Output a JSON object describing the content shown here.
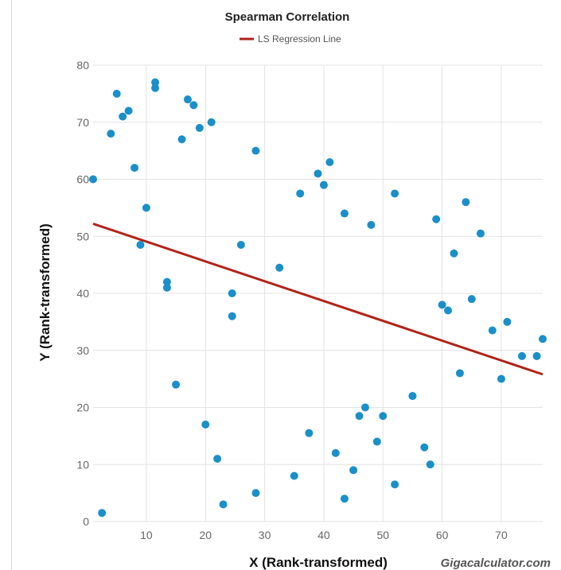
{
  "chart_data": {
    "type": "scatter",
    "title": "Spearman Correlation",
    "xlabel": "X (Rank-transformed)",
    "ylabel": "Y (Rank-transformed)",
    "xlim": [
      1,
      77
    ],
    "ylim": [
      0,
      80
    ],
    "x_ticks": [
      10,
      20,
      30,
      40,
      50,
      60,
      70
    ],
    "y_ticks": [
      0,
      10,
      20,
      30,
      40,
      50,
      60,
      70,
      80
    ],
    "grid": true,
    "legend": {
      "position": "top-center",
      "entries": [
        "LS Regression Line"
      ]
    },
    "watermark": "Gigacalculator.com",
    "colors": {
      "points": "#1a8fc9",
      "regression_line": "#b22318",
      "grid": "#e3e3e3",
      "axis_text": "#666666"
    },
    "series": [
      {
        "kind": "points",
        "points": [
          [
            1,
            60
          ],
          [
            2.5,
            1.5
          ],
          [
            4,
            68
          ],
          [
            5,
            75
          ],
          [
            6,
            71
          ],
          [
            7,
            72
          ],
          [
            8,
            62
          ],
          [
            9,
            48.5
          ],
          [
            10,
            55
          ],
          [
            11.5,
            77
          ],
          [
            11.5,
            76
          ],
          [
            13.5,
            42
          ],
          [
            13.5,
            41
          ],
          [
            15,
            24
          ],
          [
            16,
            67
          ],
          [
            17,
            74
          ],
          [
            18,
            73
          ],
          [
            19,
            69
          ],
          [
            20,
            17
          ],
          [
            21,
            70
          ],
          [
            22,
            11
          ],
          [
            23,
            3
          ],
          [
            24.5,
            40
          ],
          [
            24.5,
            36
          ],
          [
            26,
            48.5
          ],
          [
            28.5,
            65
          ],
          [
            28.5,
            5
          ],
          [
            32.5,
            44.5
          ],
          [
            35,
            8
          ],
          [
            36,
            57.5
          ],
          [
            37.5,
            15.5
          ],
          [
            39,
            61
          ],
          [
            40,
            59
          ],
          [
            41,
            63
          ],
          [
            42,
            12
          ],
          [
            43.5,
            54
          ],
          [
            43.5,
            4
          ],
          [
            45,
            9
          ],
          [
            46,
            18.5
          ],
          [
            47,
            20
          ],
          [
            48,
            52
          ],
          [
            49,
            14
          ],
          [
            50,
            18.5
          ],
          [
            52,
            57.5
          ],
          [
            52,
            6.5
          ],
          [
            55,
            22
          ],
          [
            55,
            22
          ],
          [
            57,
            13
          ],
          [
            58,
            10
          ],
          [
            59,
            53
          ],
          [
            60,
            38
          ],
          [
            61,
            37
          ],
          [
            62,
            47
          ],
          [
            63,
            26
          ],
          [
            64,
            56
          ],
          [
            65,
            39
          ],
          [
            66.5,
            50.5
          ],
          [
            68.5,
            33.5
          ],
          [
            70,
            25
          ],
          [
            71,
            35
          ],
          [
            73.5,
            29
          ],
          [
            76,
            29
          ],
          [
            77,
            32
          ]
        ]
      },
      {
        "name": "LS Regression Line",
        "kind": "line",
        "points": [
          [
            1,
            52.2
          ],
          [
            77,
            25.8
          ]
        ]
      }
    ]
  }
}
